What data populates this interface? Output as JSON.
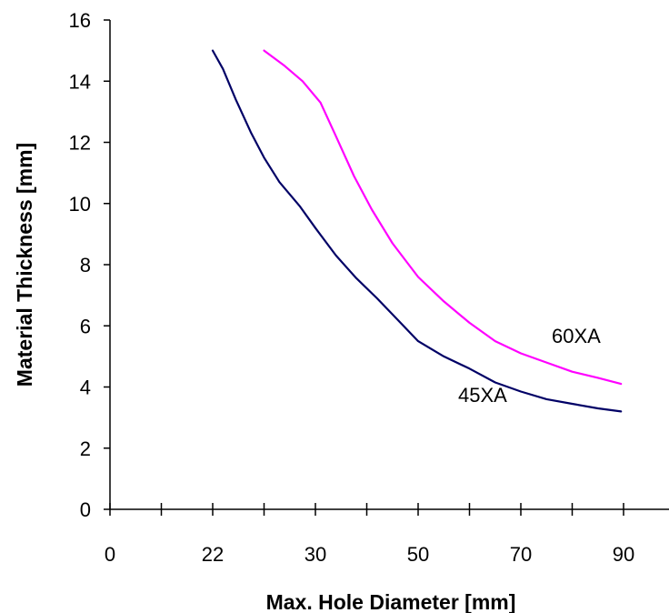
{
  "chart_data": {
    "type": "line",
    "xlabel": "Max. Hole Diameter [mm]",
    "ylabel": "Material Thickness [mm]",
    "x_tick_labels": [
      "0",
      "22",
      "30",
      "50",
      "70",
      "90"
    ],
    "y_ticks": [
      0,
      2,
      4,
      6,
      8,
      10,
      12,
      14,
      16
    ],
    "ylim": [
      0,
      16
    ],
    "grid": false,
    "legend": "none",
    "series": [
      {
        "name": "45XA",
        "color": "#000066",
        "points": [
          [
            2.0,
            15.0
          ],
          [
            2.2,
            14.4
          ],
          [
            2.45,
            13.4
          ],
          [
            2.75,
            12.3
          ],
          [
            3.0,
            11.5
          ],
          [
            3.3,
            10.7
          ],
          [
            3.7,
            9.9
          ],
          [
            4.0,
            9.2
          ],
          [
            4.4,
            8.3
          ],
          [
            4.8,
            7.55
          ],
          [
            5.2,
            6.9
          ],
          [
            5.6,
            6.2
          ],
          [
            6.0,
            5.5
          ],
          [
            6.5,
            5.0
          ],
          [
            7.0,
            4.6
          ],
          [
            7.5,
            4.15
          ],
          [
            8.0,
            3.85
          ],
          [
            8.5,
            3.6
          ],
          [
            9.0,
            3.45
          ],
          [
            9.5,
            3.3
          ],
          [
            9.95,
            3.2
          ]
        ]
      },
      {
        "name": "60XA",
        "color": "#ff00ff",
        "points": [
          [
            3.0,
            15.0
          ],
          [
            3.4,
            14.5
          ],
          [
            3.75,
            14.0
          ],
          [
            4.1,
            13.3
          ],
          [
            4.4,
            12.2
          ],
          [
            4.75,
            10.9
          ],
          [
            5.1,
            9.8
          ],
          [
            5.5,
            8.7
          ],
          [
            6.0,
            7.6
          ],
          [
            6.5,
            6.8
          ],
          [
            7.0,
            6.1
          ],
          [
            7.5,
            5.5
          ],
          [
            8.0,
            5.1
          ],
          [
            8.5,
            4.8
          ],
          [
            9.0,
            4.5
          ],
          [
            9.5,
            4.3
          ],
          [
            9.95,
            4.1
          ]
        ]
      }
    ]
  }
}
